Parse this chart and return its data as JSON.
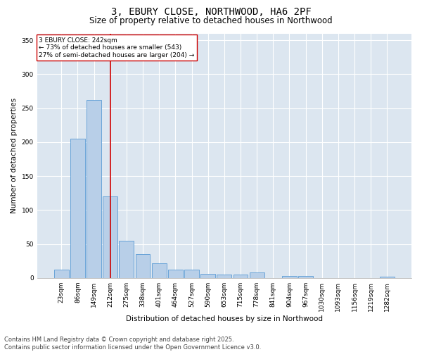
{
  "title_line1": "3, EBURY CLOSE, NORTHWOOD, HA6 2PF",
  "title_line2": "Size of property relative to detached houses in Northwood",
  "xlabel": "Distribution of detached houses by size in Northwood",
  "ylabel": "Number of detached properties",
  "categories": [
    "23sqm",
    "86sqm",
    "149sqm",
    "212sqm",
    "275sqm",
    "338sqm",
    "401sqm",
    "464sqm",
    "527sqm",
    "590sqm",
    "653sqm",
    "715sqm",
    "778sqm",
    "841sqm",
    "904sqm",
    "967sqm",
    "1030sqm",
    "1093sqm",
    "1156sqm",
    "1219sqm",
    "1282sqm"
  ],
  "values": [
    12,
    205,
    262,
    120,
    55,
    35,
    22,
    12,
    12,
    6,
    5,
    5,
    8,
    0,
    3,
    3,
    0,
    0,
    0,
    0,
    2
  ],
  "bar_color": "#b8cfe8",
  "bar_edge_color": "#5b9bd5",
  "vline_x_index": 3,
  "vline_color": "#cc0000",
  "annotation_text": "3 EBURY CLOSE: 242sqm\n← 73% of detached houses are smaller (543)\n27% of semi-detached houses are larger (204) →",
  "annotation_box_color": "#cc0000",
  "ylim": [
    0,
    360
  ],
  "yticks": [
    0,
    50,
    100,
    150,
    200,
    250,
    300,
    350
  ],
  "background_color": "#dce6f0",
  "footer_line1": "Contains HM Land Registry data © Crown copyright and database right 2025.",
  "footer_line2": "Contains public sector information licensed under the Open Government Licence v3.0.",
  "title_fontsize": 10,
  "subtitle_fontsize": 8.5,
  "tick_fontsize": 6.5,
  "ylabel_fontsize": 7.5,
  "xlabel_fontsize": 7.5,
  "footer_fontsize": 6,
  "annotation_fontsize": 6.5
}
